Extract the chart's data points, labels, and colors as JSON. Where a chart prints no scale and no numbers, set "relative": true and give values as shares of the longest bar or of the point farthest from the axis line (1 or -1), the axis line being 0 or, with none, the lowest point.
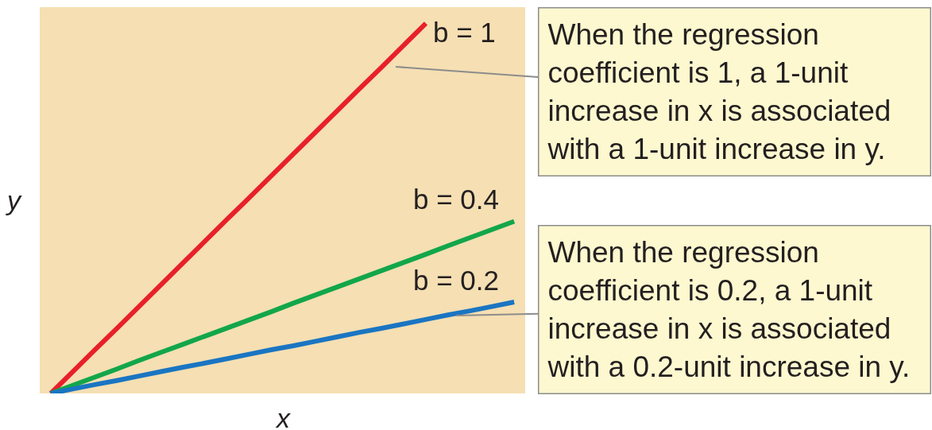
{
  "chart_data": {
    "type": "line",
    "relative": true,
    "xlabel": "x",
    "ylabel": "y",
    "marker": "none",
    "line_style": "solid",
    "categories": [
      null,
      null,
      null,
      null,
      null,
      null,
      null,
      null,
      null,
      null,
      null,
      null,
      null,
      null,
      null,
      null,
      null,
      null,
      null,
      null,
      null,
      null
    ],
    "series": [
      {
        "name": "b = 1",
        "color": "#e8202a",
        "values": [
          0,
          0.059,
          0.118,
          0.176,
          0.235,
          0.294,
          0.353,
          0.412,
          0.471,
          0.529,
          0.588,
          0.647,
          0.706,
          0.765,
          0.824,
          0.882,
          0.941,
          1,
          null,
          null,
          null,
          null
        ]
      },
      {
        "name": "b = 0.4",
        "color": "#12a64a",
        "values": [
          0,
          0.022,
          0.044,
          0.066,
          0.089,
          0.111,
          0.133,
          0.155,
          0.177,
          0.199,
          0.221,
          0.244,
          0.266,
          0.288,
          0.31,
          0.332,
          0.354,
          0.376,
          0.399,
          0.421,
          0.443,
          0.465
        ]
      },
      {
        "name": "b = 0.2",
        "color": "#1a75c2",
        "values": [
          0,
          0.012,
          0.024,
          0.035,
          0.047,
          0.059,
          0.071,
          0.082,
          0.094,
          0.106,
          0.118,
          0.129,
          0.141,
          0.153,
          0.165,
          0.176,
          0.188,
          0.2,
          0.212,
          0.223,
          0.235,
          0.247
        ]
      }
    ],
    "annotations": [
      "When the regression\ncoefficient is 1, a 1-unit\nincrease in x is associated\nwith a 1-unit increase in y.",
      "When the regression\ncoefficient is 0.2, a 1-unit\nincrease in x is associated\nwith a 0.2-unit increase in y."
    ]
  }
}
